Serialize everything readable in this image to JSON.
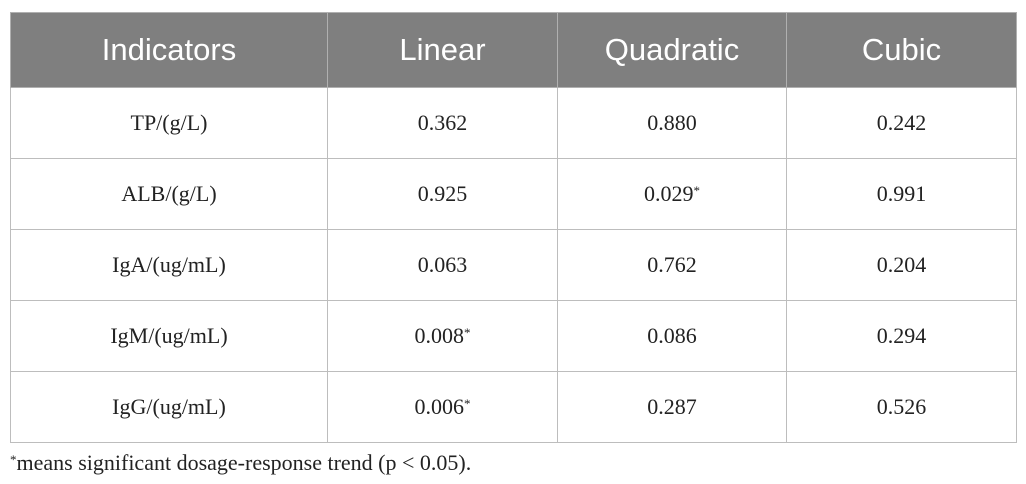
{
  "table": {
    "header": [
      "Indicators",
      "Linear",
      "Quadratic",
      "Cubic"
    ],
    "rows": [
      [
        {
          "text": "TP/(g/L)"
        },
        {
          "text": "0.362"
        },
        {
          "text": "0.880"
        },
        {
          "text": "0.242"
        }
      ],
      [
        {
          "text": "ALB/(g/L)"
        },
        {
          "text": "0.925"
        },
        {
          "text": "0.029",
          "note": "*"
        },
        {
          "text": "0.991"
        }
      ],
      [
        {
          "text": "IgA/(ug/mL)"
        },
        {
          "text": "0.063"
        },
        {
          "text": "0.762"
        },
        {
          "text": "0.204"
        }
      ],
      [
        {
          "text": "IgM/(ug/mL)"
        },
        {
          "text": "0.008",
          "note": "*"
        },
        {
          "text": "0.086"
        },
        {
          "text": "0.294"
        }
      ],
      [
        {
          "text": "IgG/(ug/mL)"
        },
        {
          "text": "0.006",
          "note": "*"
        },
        {
          "text": "0.287"
        },
        {
          "text": "0.526"
        }
      ]
    ]
  },
  "footnote": {
    "marker": "*",
    "text": "means significant dosage-response trend (p < 0.05)."
  }
}
